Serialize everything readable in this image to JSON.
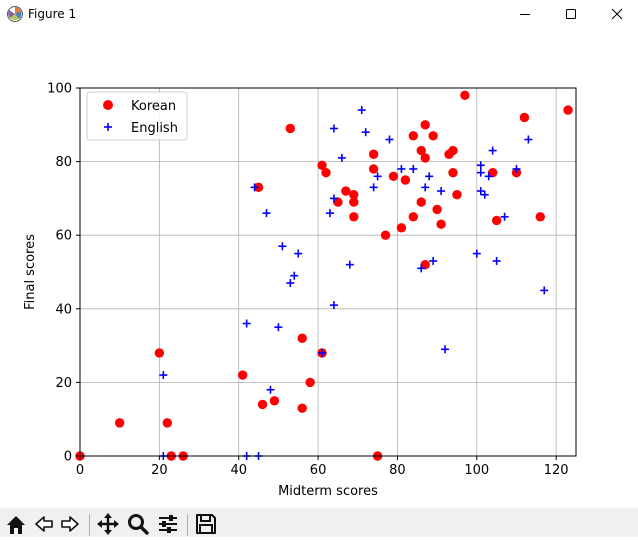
{
  "window": {
    "title": "Figure 1",
    "controls": [
      "minimize",
      "maximize",
      "close"
    ]
  },
  "toolbar": {
    "buttons": [
      "home-icon",
      "back-icon",
      "forward-icon",
      "pan-icon",
      "zoom-icon",
      "configure-subplots-icon",
      "save-icon"
    ]
  },
  "chart_data": {
    "type": "scatter",
    "title": "",
    "xlabel": "Midterm scores",
    "ylabel": "Final scores",
    "xlim": [
      0,
      125
    ],
    "ylim": [
      0,
      100
    ],
    "xticks": [
      0,
      20,
      40,
      60,
      80,
      100,
      120
    ],
    "yticks": [
      0,
      20,
      40,
      60,
      80,
      100
    ],
    "grid": true,
    "legend_position": "upper-left",
    "series": [
      {
        "name": "Korean",
        "marker": "circle",
        "color": "#ff0000",
        "points": [
          [
            0,
            0
          ],
          [
            10,
            9
          ],
          [
            20,
            28
          ],
          [
            22,
            9
          ],
          [
            23,
            0
          ],
          [
            26,
            0
          ],
          [
            41,
            22
          ],
          [
            45,
            73
          ],
          [
            46,
            14
          ],
          [
            49,
            15
          ],
          [
            53,
            89
          ],
          [
            56,
            32
          ],
          [
            56,
            13
          ],
          [
            58,
            20
          ],
          [
            61,
            79
          ],
          [
            61,
            28
          ],
          [
            62,
            77
          ],
          [
            65,
            69
          ],
          [
            67,
            72
          ],
          [
            69,
            71
          ],
          [
            69,
            69
          ],
          [
            69,
            65
          ],
          [
            74,
            82
          ],
          [
            74,
            78
          ],
          [
            75,
            0
          ],
          [
            77,
            60
          ],
          [
            79,
            76
          ],
          [
            81,
            62
          ],
          [
            82,
            75
          ],
          [
            84,
            87
          ],
          [
            84,
            65
          ],
          [
            86,
            83
          ],
          [
            86,
            69
          ],
          [
            87,
            90
          ],
          [
            87,
            81
          ],
          [
            87,
            52
          ],
          [
            89,
            87
          ],
          [
            90,
            67
          ],
          [
            91,
            63
          ],
          [
            93,
            82
          ],
          [
            94,
            83
          ],
          [
            94,
            77
          ],
          [
            95,
            71
          ],
          [
            97,
            98
          ],
          [
            104,
            77
          ],
          [
            105,
            64
          ],
          [
            110,
            77
          ],
          [
            112,
            92
          ],
          [
            116,
            65
          ],
          [
            123,
            94
          ]
        ]
      },
      {
        "name": "English",
        "marker": "plus",
        "color": "#0000ff",
        "points": [
          [
            21,
            22
          ],
          [
            21,
            0
          ],
          [
            42,
            36
          ],
          [
            42,
            0
          ],
          [
            44,
            73
          ],
          [
            45,
            0
          ],
          [
            47,
            66
          ],
          [
            48,
            18
          ],
          [
            50,
            35
          ],
          [
            51,
            57
          ],
          [
            53,
            47
          ],
          [
            54,
            49
          ],
          [
            55,
            55
          ],
          [
            61,
            28
          ],
          [
            63,
            66
          ],
          [
            64,
            89
          ],
          [
            64,
            70
          ],
          [
            64,
            41
          ],
          [
            66,
            81
          ],
          [
            68,
            52
          ],
          [
            71,
            94
          ],
          [
            72,
            88
          ],
          [
            74,
            73
          ],
          [
            75,
            76
          ],
          [
            78,
            86
          ],
          [
            81,
            78
          ],
          [
            84,
            78
          ],
          [
            86,
            51
          ],
          [
            87,
            73
          ],
          [
            88,
            76
          ],
          [
            89,
            53
          ],
          [
            91,
            72
          ],
          [
            92,
            29
          ],
          [
            100,
            55
          ],
          [
            101,
            79
          ],
          [
            101,
            77
          ],
          [
            101,
            72
          ],
          [
            102,
            71
          ],
          [
            103,
            76
          ],
          [
            104,
            83
          ],
          [
            105,
            53
          ],
          [
            107,
            65
          ],
          [
            110,
            78
          ],
          [
            113,
            86
          ],
          [
            117,
            45
          ]
        ]
      }
    ]
  }
}
